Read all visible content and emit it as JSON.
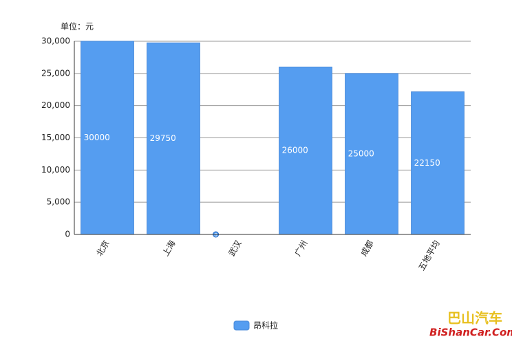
{
  "chart_data": {
    "type": "bar",
    "unit_label": "单位：元",
    "categories": [
      "北京",
      "上海",
      "武汉",
      "广州",
      "成都",
      "五地平均"
    ],
    "series": [
      {
        "name": "昂科拉",
        "color": "#559df0",
        "values": [
          30000,
          29750,
          0,
          26000,
          25000,
          22150
        ]
      }
    ],
    "ylim": [
      0,
      30000
    ],
    "yticks": [
      0,
      {
        "value": 5000,
        "label": "5,000"
      },
      {
        "value": 10000,
        "label": "10,000"
      },
      {
        "value": 15000,
        "label": "15,000"
      },
      {
        "value": 20000,
        "label": "20,000"
      },
      {
        "value": 25000,
        "label": "25,000"
      },
      {
        "value": 30000,
        "label": "30,000"
      }
    ],
    "grid": true,
    "legend": "bottom"
  },
  "watermark": {
    "title": "巴山汽车",
    "site": "BiShanCar.Com"
  }
}
